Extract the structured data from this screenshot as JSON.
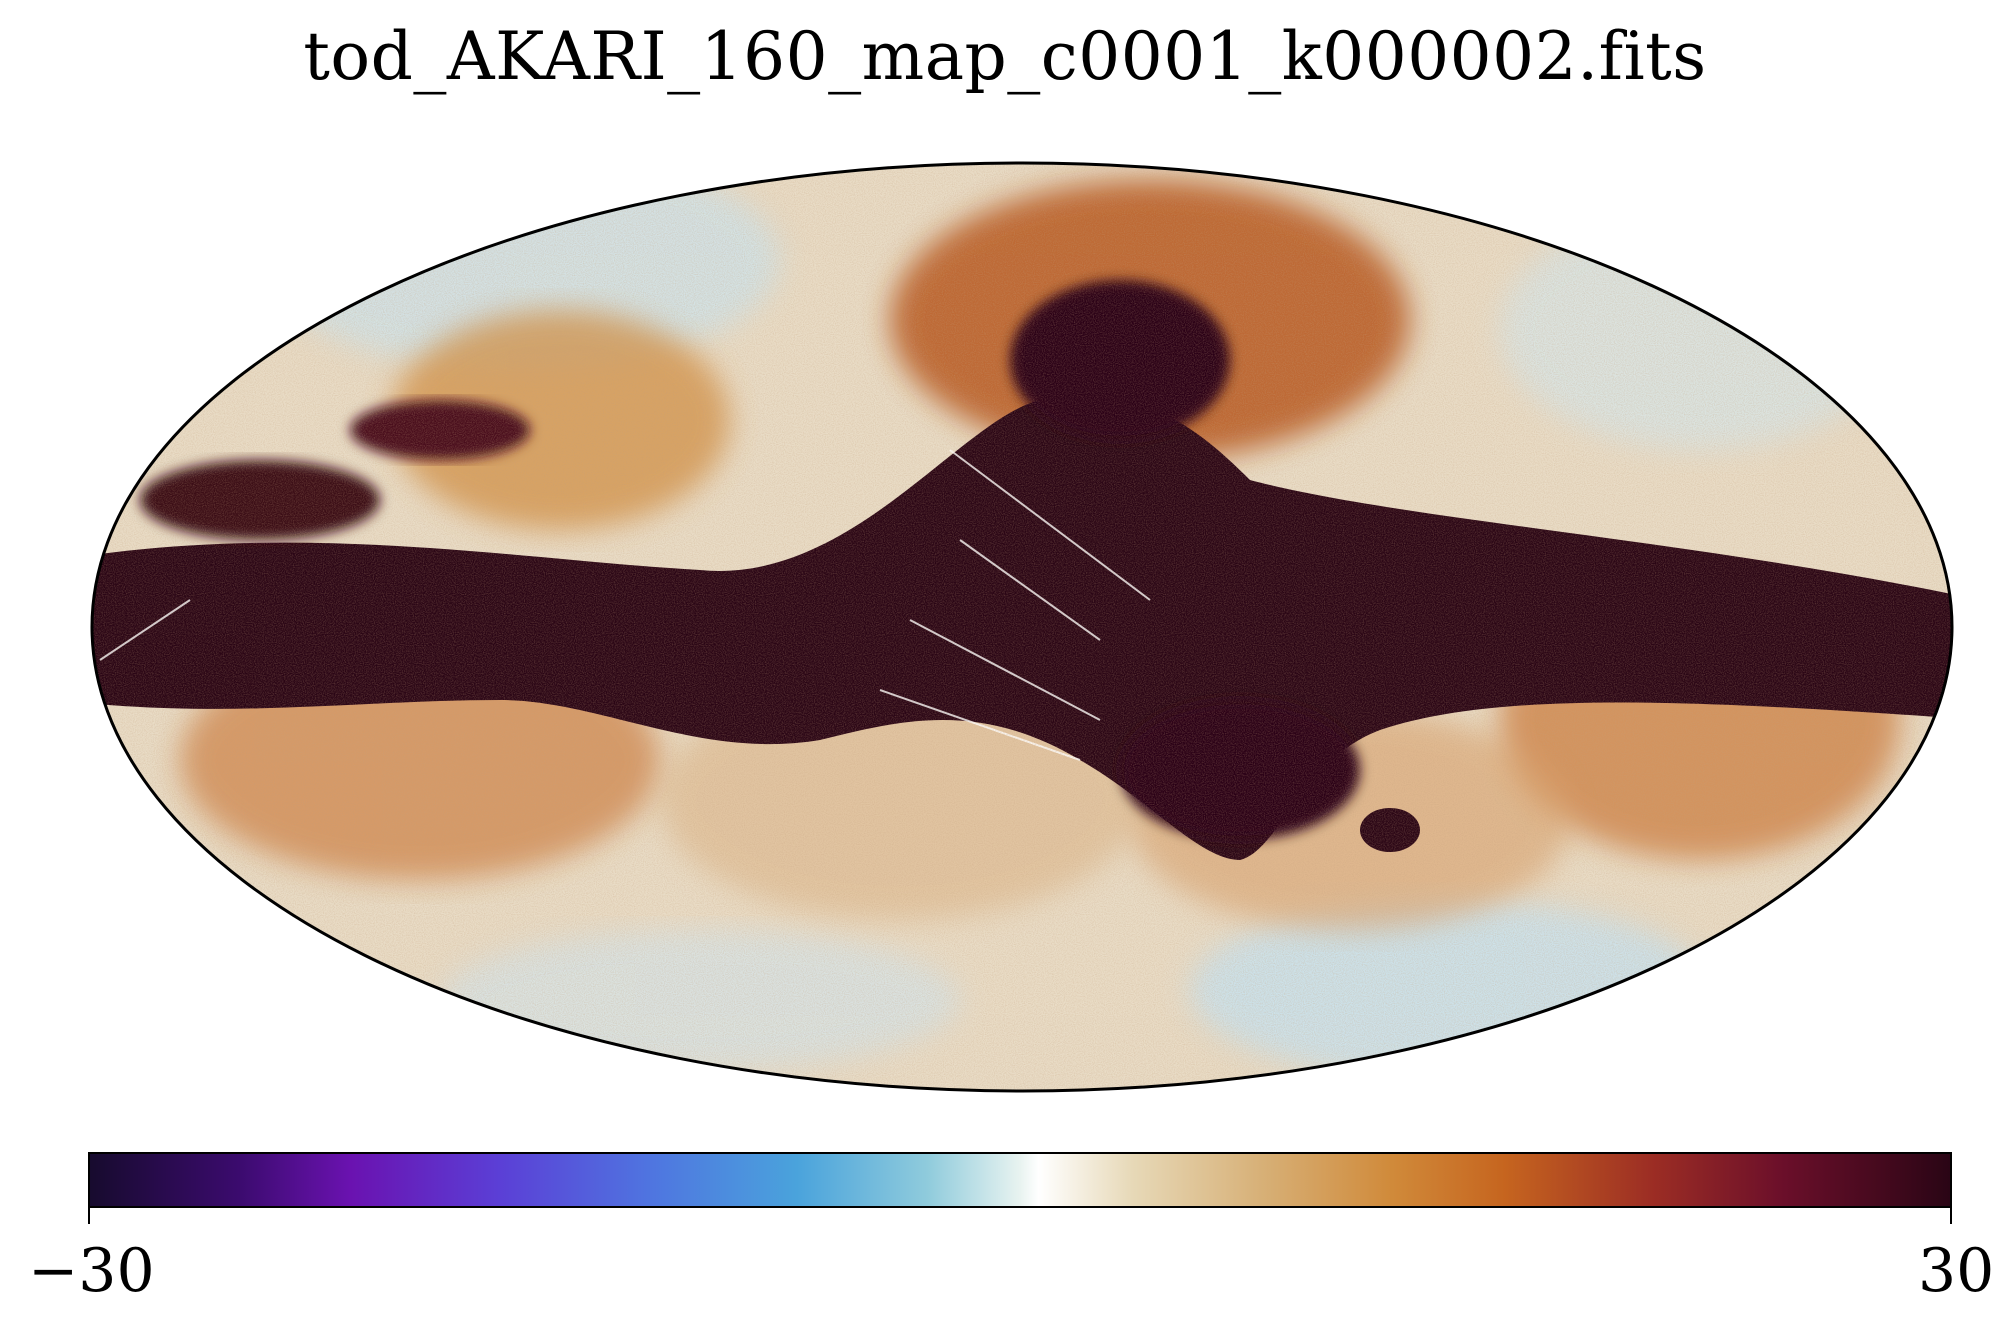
{
  "title": "tod_AKARI_160_map_c0001_k000002.fits",
  "projection": "Mollweide",
  "colormap": {
    "min_label": "−30",
    "max_label": "30",
    "min_value": -30,
    "max_value": 30,
    "colors": {
      "low": "#170b2e",
      "mid": "#ffffff",
      "high": "#2a0515",
      "saturated": "#2a0515",
      "dust": "#c6651f",
      "faint": "#e7d9b8",
      "cool": "#4aa3dc"
    }
  }
}
